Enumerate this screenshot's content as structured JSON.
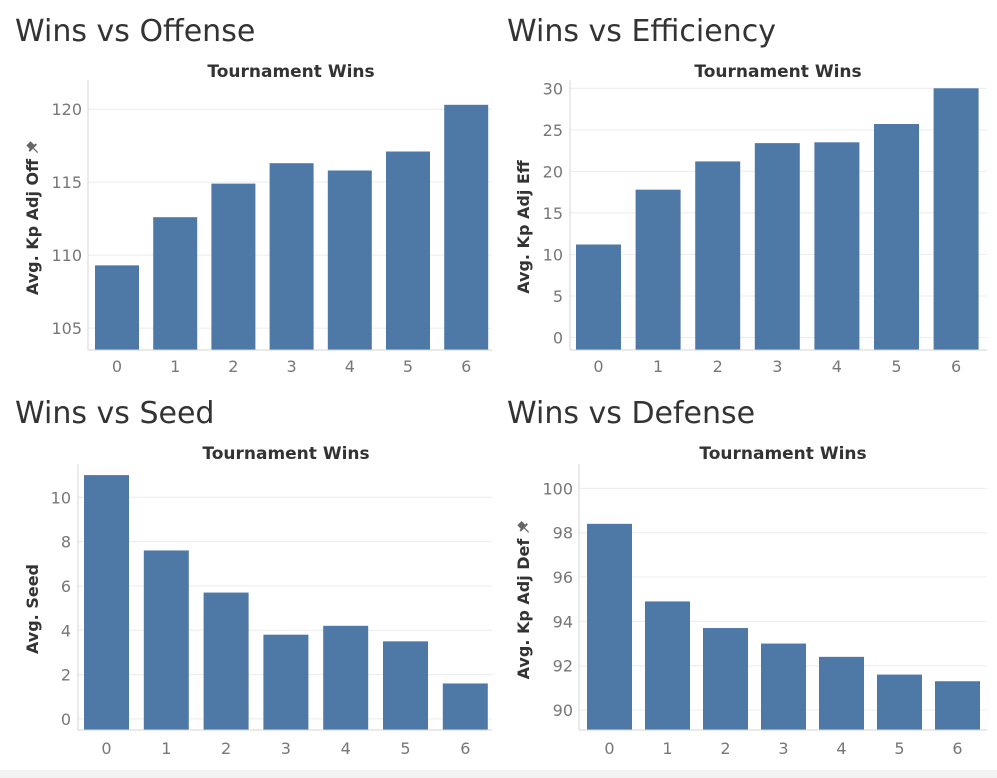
{
  "colors": {
    "bar": "#4e79a7",
    "grid": "#ececec",
    "axis": "#d4d4d4",
    "tick_text": "#777777",
    "label_text": "#333333"
  },
  "chart_data": [
    {
      "type": "bar",
      "panel_title": "Wins vs Offense",
      "title": "Tournament Wins",
      "xlabel": "",
      "ylabel": "Avg. Kp Adj Off",
      "ylabel_pin": true,
      "categories": [
        "0",
        "1",
        "2",
        "3",
        "4",
        "5",
        "6"
      ],
      "values": [
        109.3,
        112.6,
        114.9,
        116.3,
        115.8,
        117.1,
        120.3
      ],
      "ylim": [
        103.5,
        122
      ],
      "yticks": [
        105,
        110,
        115,
        120
      ],
      "grid": true
    },
    {
      "type": "bar",
      "panel_title": "Wins vs Efficiency",
      "title": "Tournament Wins",
      "xlabel": "",
      "ylabel": "Avg. Kp Adj Eff",
      "ylabel_pin": false,
      "categories": [
        "0",
        "1",
        "2",
        "3",
        "4",
        "5",
        "6"
      ],
      "values": [
        11.2,
        17.8,
        21.2,
        23.4,
        23.5,
        25.7,
        30.0
      ],
      "ylim": [
        -1.5,
        31
      ],
      "yticks": [
        0,
        5,
        10,
        15,
        20,
        25,
        30
      ],
      "grid": true
    },
    {
      "type": "bar",
      "panel_title": "Wins vs Seed",
      "title": "Tournament Wins",
      "xlabel": "",
      "ylabel": "Avg. Seed",
      "ylabel_pin": false,
      "categories": [
        "0",
        "1",
        "2",
        "3",
        "4",
        "5",
        "6"
      ],
      "values": [
        11.0,
        7.6,
        5.7,
        3.8,
        4.2,
        3.5,
        1.6
      ],
      "ylim": [
        -0.5,
        11.5
      ],
      "yticks": [
        0,
        2,
        4,
        6,
        8,
        10
      ],
      "grid": true
    },
    {
      "type": "bar",
      "panel_title": "Wins vs Defense",
      "title": "Tournament Wins",
      "xlabel": "",
      "ylabel": "Avg. Kp Adj Def",
      "ylabel_pin": true,
      "categories": [
        "0",
        "1",
        "2",
        "3",
        "4",
        "5",
        "6"
      ],
      "values": [
        98.4,
        94.9,
        93.7,
        93.0,
        92.4,
        91.6,
        91.3
      ],
      "ylim": [
        89.1,
        101.1
      ],
      "yticks": [
        90,
        92,
        94,
        96,
        98,
        100
      ],
      "grid": true
    }
  ]
}
